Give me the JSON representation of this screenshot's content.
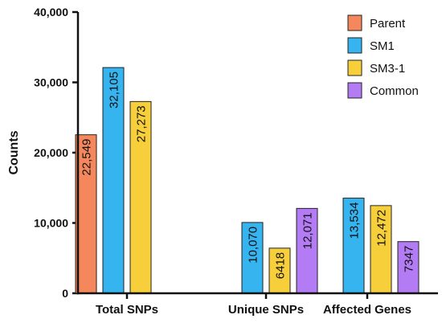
{
  "chart_data": {
    "type": "bar",
    "categories": [
      "Total SNPs",
      "Unique SNPs",
      "Affected Genes"
    ],
    "ylabel": "Counts",
    "ylim": [
      0,
      40000
    ],
    "yticks": [
      0,
      10000,
      20000,
      30000,
      40000
    ],
    "ytick_labels": [
      "0",
      "10,000",
      "20,000",
      "30,000",
      "40,000"
    ],
    "grid": false,
    "legend_position": "top-right",
    "series": [
      {
        "name": "Parent",
        "color": "#F4875B",
        "values": [
          22549,
          null,
          null
        ],
        "labels": [
          "22,549",
          "",
          ""
        ]
      },
      {
        "name": "SM1",
        "color": "#36B4EF",
        "values": [
          32105,
          10070,
          13534
        ],
        "labels": [
          "32,105",
          "10,070",
          "13,534"
        ]
      },
      {
        "name": "SM3-1",
        "color": "#F7CF3A",
        "values": [
          27273,
          6418,
          12472
        ],
        "labels": [
          "27,273",
          "6418",
          "12,472"
        ]
      },
      {
        "name": "Common",
        "color": "#B47CF4",
        "values": [
          null,
          12071,
          7347
        ],
        "labels": [
          "",
          "12,071",
          "7347"
        ]
      }
    ]
  }
}
